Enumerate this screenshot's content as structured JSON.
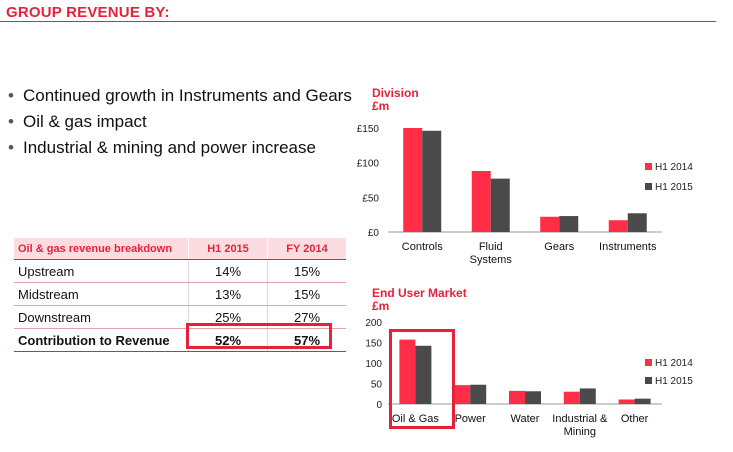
{
  "slide": {
    "title": "GROUP REVENUE BY:",
    "bullets": [
      "Continued growth in Instruments and Gears",
      "Oil & gas impact",
      "Industrial & mining and power increase"
    ]
  },
  "table": {
    "headers": [
      "Oil & gas revenue breakdown",
      "H1 2015",
      "FY 2014"
    ],
    "rows": [
      [
        "Upstream",
        "14%",
        "15%"
      ],
      [
        "Midstream",
        "13%",
        "15%"
      ],
      [
        "Downstream",
        "25%",
        "27%"
      ],
      [
        "Contribution to Revenue",
        "52%",
        "57%"
      ]
    ]
  },
  "colors": {
    "accent": "#e8213b",
    "h1_2014": "#ff2d45",
    "h1_2015": "#4a4a4a"
  },
  "chart_data": [
    {
      "type": "bar",
      "title": "Division",
      "ylabel": "£m",
      "categories": [
        "Controls",
        "Fluid Systems",
        "Gears",
        "Instruments"
      ],
      "series": [
        {
          "name": "H1 2014",
          "values": [
            150,
            88,
            22,
            17
          ]
        },
        {
          "name": "H1 2015",
          "values": [
            146,
            77,
            23,
            27
          ]
        }
      ],
      "ylim": [
        0,
        150
      ],
      "yticks": [
        "£0",
        "£50",
        "£100",
        "£150"
      ],
      "legend": "right"
    },
    {
      "type": "bar",
      "title": "End User Market",
      "ylabel": "£m",
      "categories": [
        "Oil & Gas",
        "Power",
        "Water",
        "Industrial & Mining",
        "Other"
      ],
      "series": [
        {
          "name": "H1 2014",
          "values": [
            157,
            46,
            32,
            30,
            11
          ]
        },
        {
          "name": "H1 2015",
          "values": [
            142,
            47,
            31,
            38,
            13
          ]
        }
      ],
      "ylim": [
        0,
        200
      ],
      "yticks": [
        "0",
        "50",
        "100",
        "150",
        "200"
      ],
      "legend": "right"
    }
  ]
}
